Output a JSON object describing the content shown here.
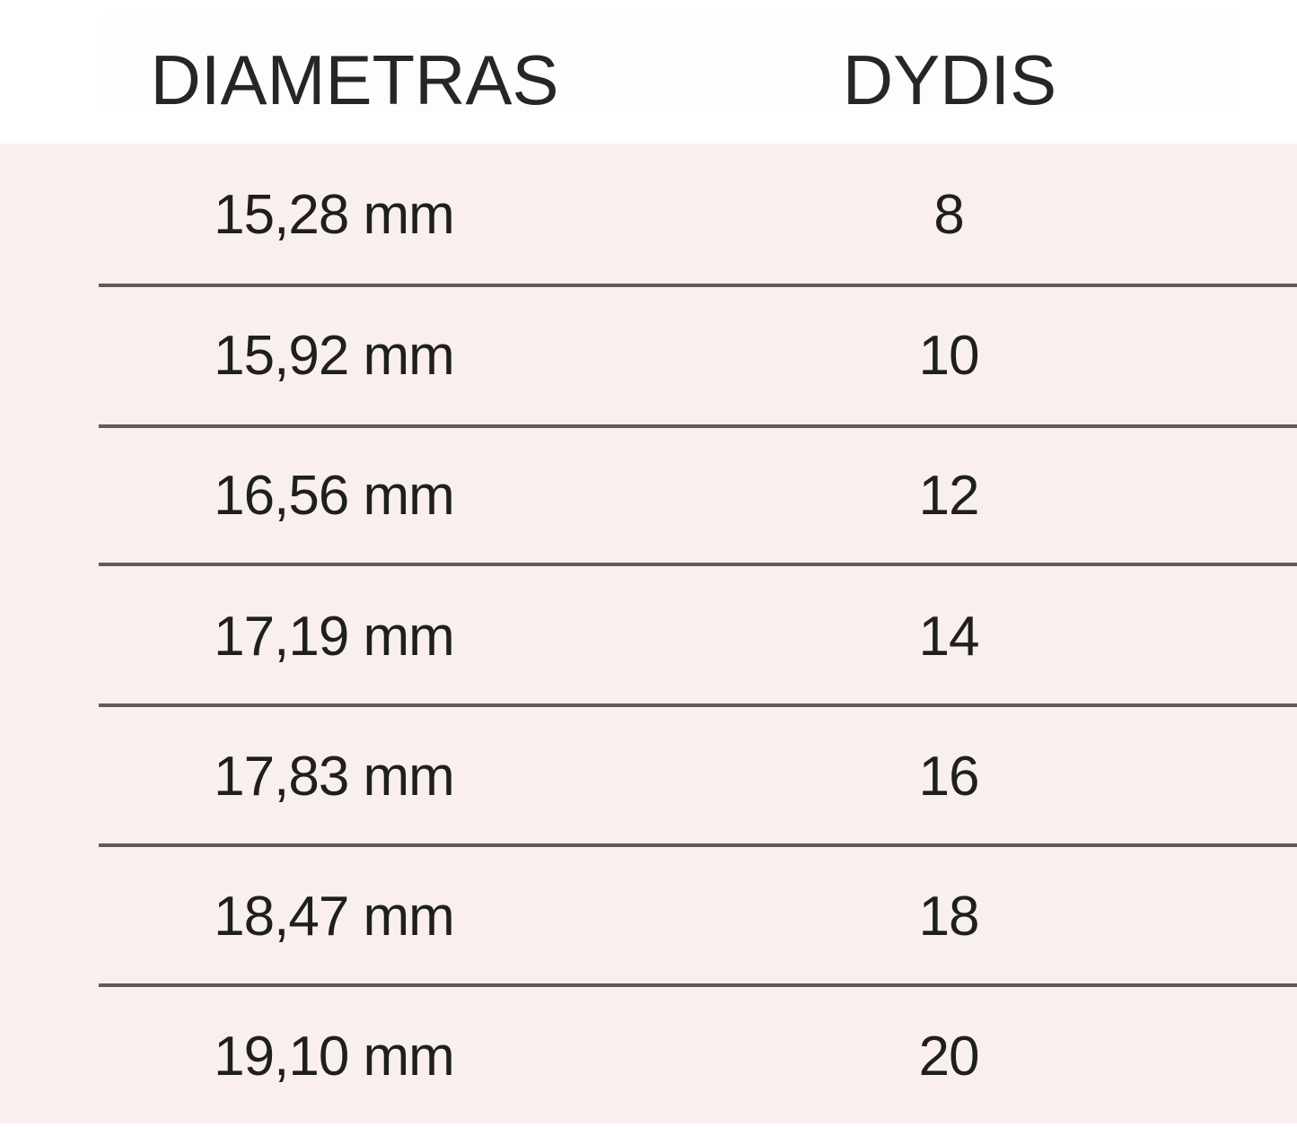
{
  "table": {
    "headers": [
      "DIAMETRAS",
      "DYDIS"
    ],
    "rows": [
      [
        "15,28 mm",
        "8"
      ],
      [
        "15,92 mm",
        "10"
      ],
      [
        "16,56 mm",
        "12"
      ],
      [
        "17,19 mm",
        "14"
      ],
      [
        "17,83 mm",
        "16"
      ],
      [
        "18,47 mm",
        "18"
      ],
      [
        "19,10 mm",
        "20"
      ]
    ]
  },
  "colors": {
    "background": "#f9f0ed",
    "divider": "#5e5a59",
    "text": "#1f1f1f"
  }
}
